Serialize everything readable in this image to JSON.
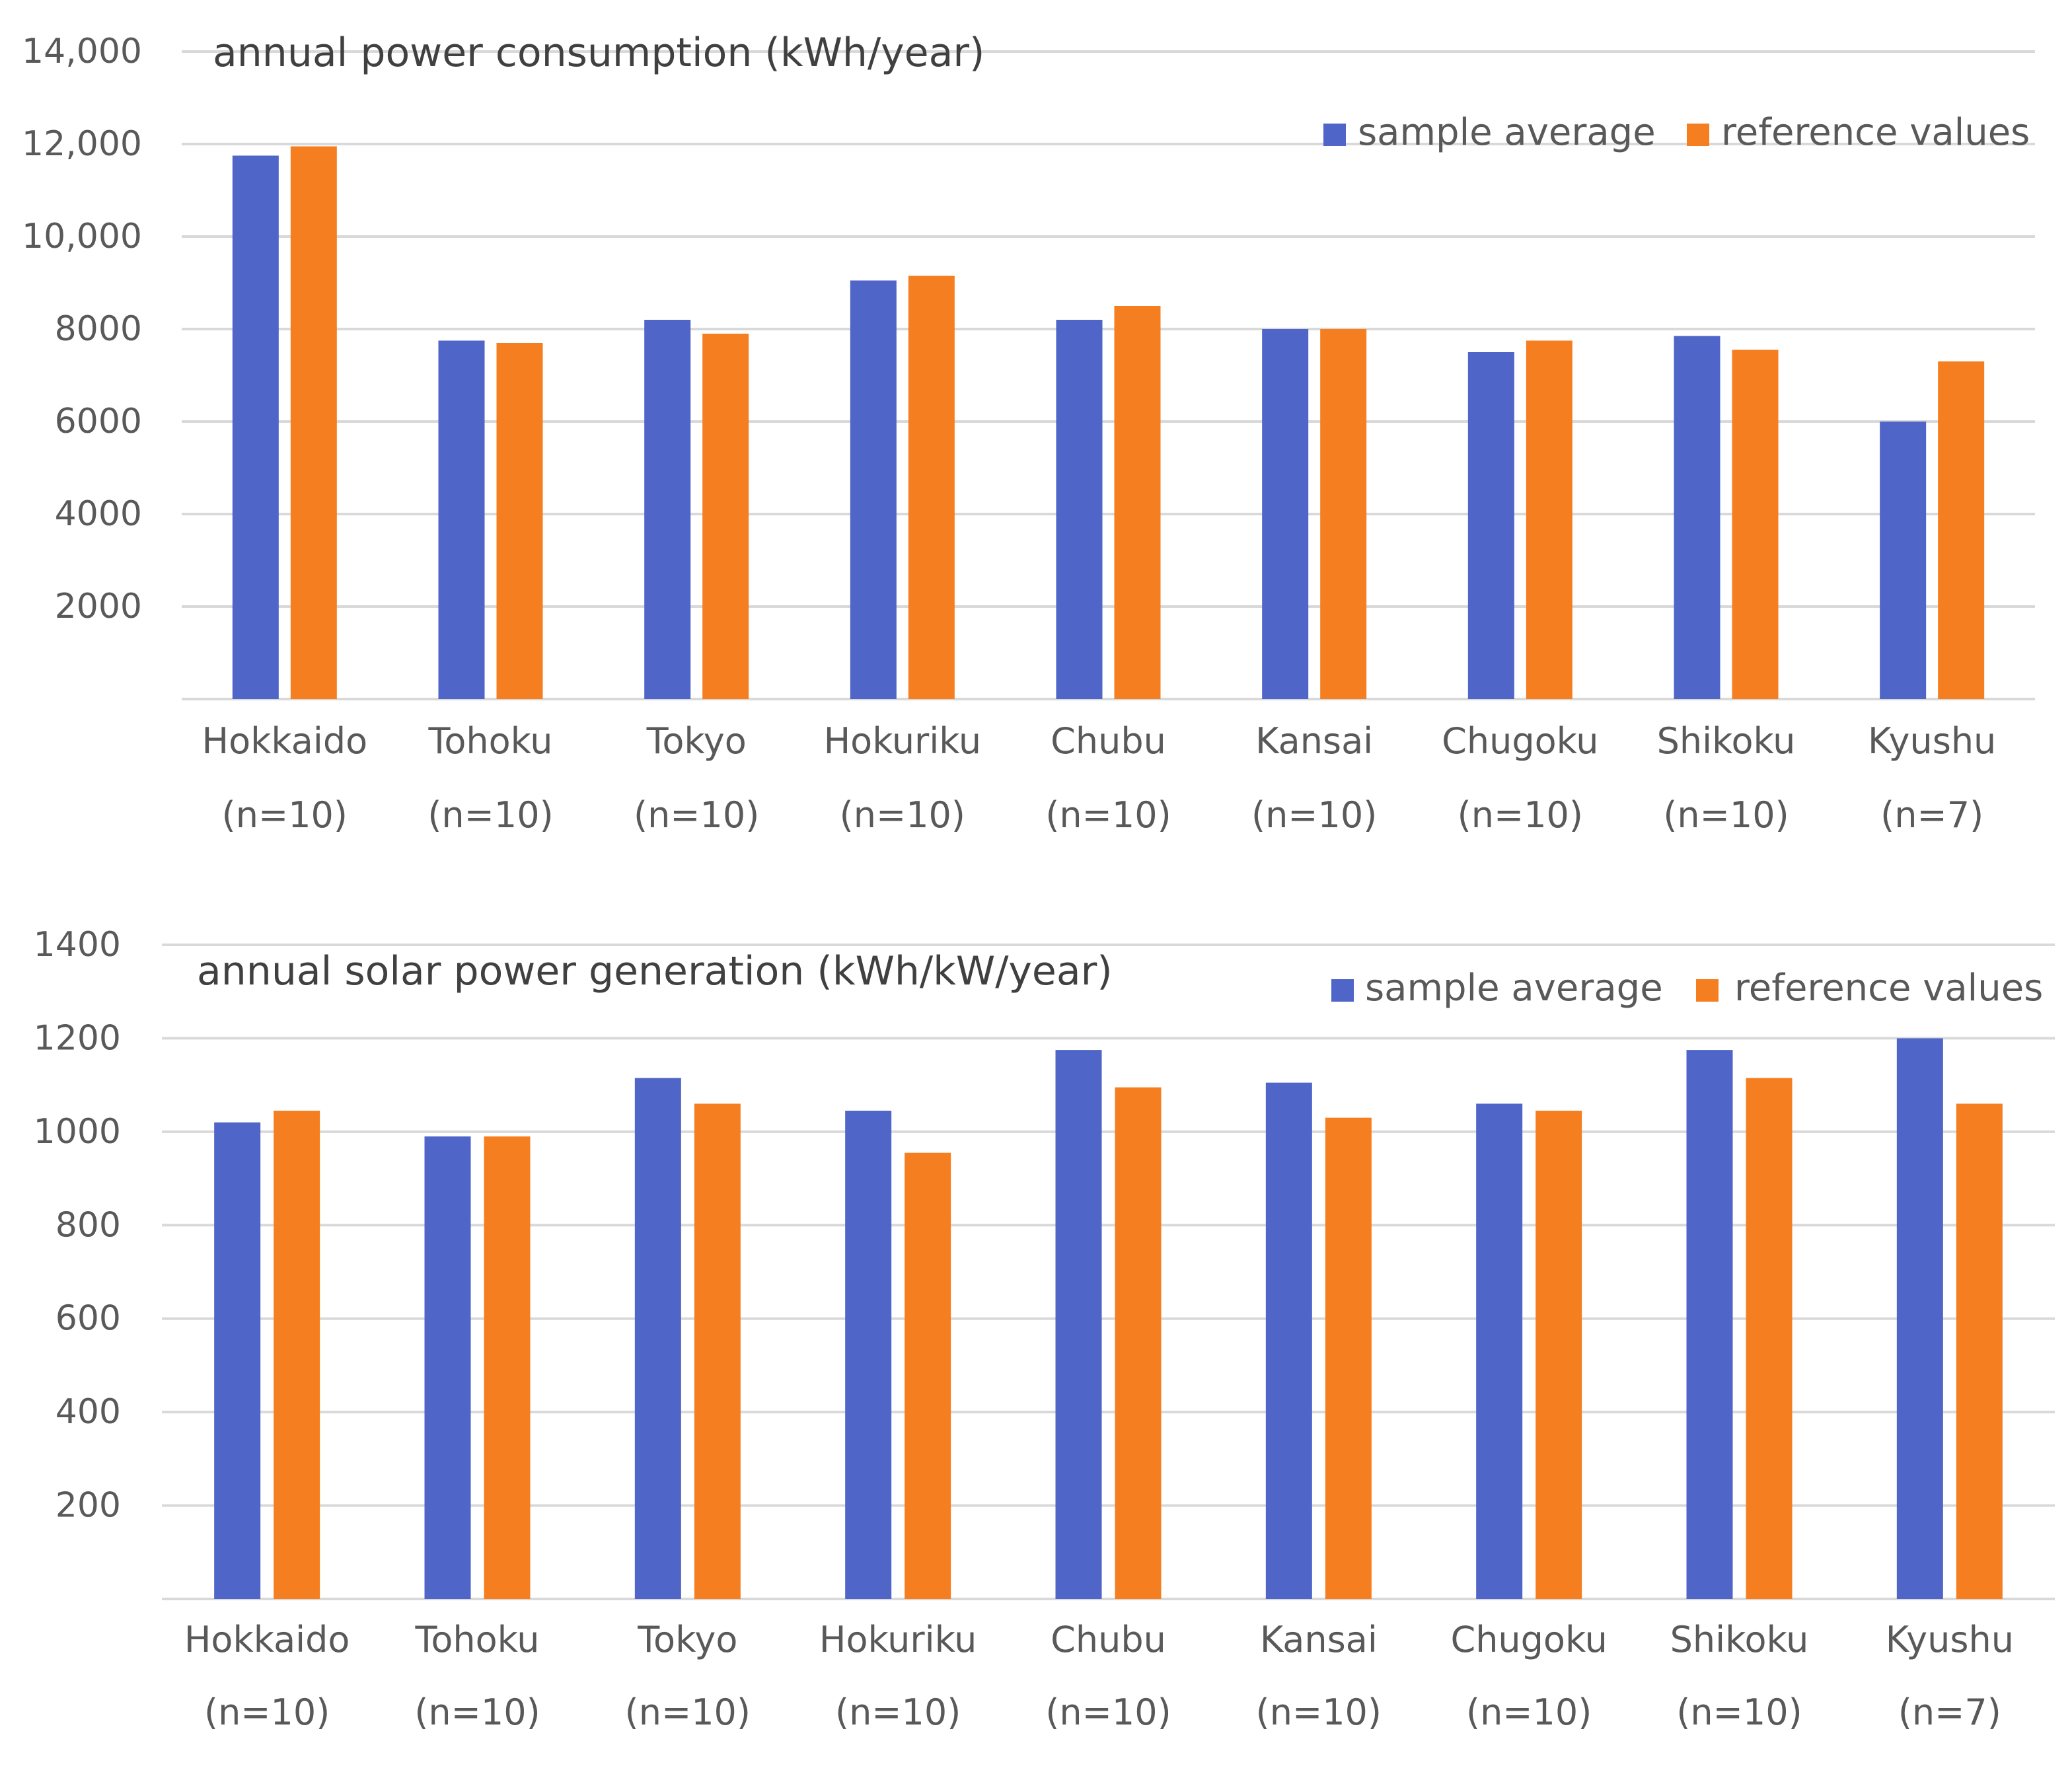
{
  "chart_data": [
    {
      "type": "bar",
      "title": "annual power consumption (kWh/year)",
      "xlabel": "",
      "ylabel": "",
      "categories": [
        "Hokkaido (n=10)",
        "Tohoku (n=10)",
        "Tokyo (n=10)",
        "Hokuriku (n=10)",
        "Chubu (n=10)",
        "Kansai (n=10)",
        "Chugoku (n=10)",
        "Shikoku (n=10)",
        "Kyushu (n=7)"
      ],
      "category_lines": [
        [
          "Hokkaido",
          "(n=10)"
        ],
        [
          "Tohoku",
          "(n=10)"
        ],
        [
          "Tokyo",
          "(n=10)"
        ],
        [
          "Hokuriku",
          "(n=10)"
        ],
        [
          "Chubu",
          "(n=10)"
        ],
        [
          "Kansai",
          "(n=10)"
        ],
        [
          "Chugoku",
          "(n=10)"
        ],
        [
          "Shikoku",
          "(n=10)"
        ],
        [
          "Kyushu",
          "(n=7)"
        ]
      ],
      "series": [
        {
          "name": "sample average",
          "color": "#4f65c8",
          "values": [
            11750,
            7750,
            8200,
            9050,
            8200,
            8000,
            7500,
            7850,
            6000
          ]
        },
        {
          "name": "reference values",
          "color": "#f57f20",
          "values": [
            11950,
            7700,
            7900,
            9150,
            8500,
            8000,
            7750,
            7550,
            7300
          ]
        }
      ],
      "ylim": [
        0,
        14000
      ],
      "yticks": [
        2000,
        4000,
        6000,
        8000,
        10000,
        12000,
        14000
      ],
      "ytick_labels": [
        "2000",
        "4000",
        "6000",
        "8000",
        "10,000",
        "12,000",
        "14,000"
      ],
      "grid": true,
      "legend": "top-right"
    },
    {
      "type": "bar",
      "title": "annual solar power generation (kWh/kW/year)",
      "xlabel": "",
      "ylabel": "",
      "categories": [
        "Hokkaido (n=10)",
        "Tohoku (n=10)",
        "Tokyo (n=10)",
        "Hokuriku (n=10)",
        "Chubu (n=10)",
        "Kansai (n=10)",
        "Chugoku (n=10)",
        "Shikoku (n=10)",
        "Kyushu (n=7)"
      ],
      "category_lines": [
        [
          "Hokkaido",
          "(n=10)"
        ],
        [
          "Tohoku",
          "(n=10)"
        ],
        [
          "Tokyo",
          "(n=10)"
        ],
        [
          "Hokuriku",
          "(n=10)"
        ],
        [
          "Chubu",
          "(n=10)"
        ],
        [
          "Kansai",
          "(n=10)"
        ],
        [
          "Chugoku",
          "(n=10)"
        ],
        [
          "Shikoku",
          "(n=10)"
        ],
        [
          "Kyushu",
          "(n=7)"
        ]
      ],
      "series": [
        {
          "name": "sample average",
          "color": "#4f65c8",
          "values": [
            1020,
            990,
            1115,
            1045,
            1175,
            1105,
            1060,
            1175,
            1200
          ]
        },
        {
          "name": "reference values",
          "color": "#f57f20",
          "values": [
            1045,
            990,
            1060,
            955,
            1095,
            1030,
            1045,
            1115,
            1060
          ]
        }
      ],
      "ylim": [
        0,
        1400
      ],
      "yticks": [
        200,
        400,
        600,
        800,
        1000,
        1200,
        1400
      ],
      "ytick_labels": [
        "200",
        "400",
        "600",
        "800",
        "1000",
        "1200",
        "1400"
      ],
      "grid": true,
      "legend": "top-right"
    }
  ]
}
